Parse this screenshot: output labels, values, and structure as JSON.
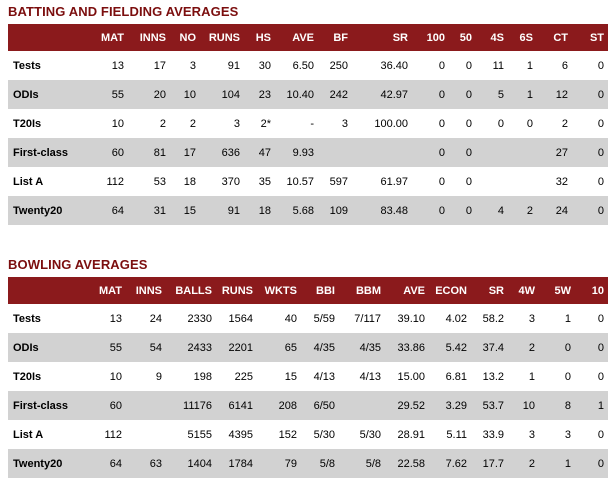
{
  "batting": {
    "title": "BATTING AND FIELDING AVERAGES",
    "columns": [
      "",
      "MAT",
      "INNS",
      "NO",
      "RUNS",
      "HS",
      "AVE",
      "BF",
      "SR",
      "100",
      "50",
      "4S",
      "6S",
      "CT",
      "ST"
    ],
    "rows": [
      [
        "Tests",
        "13",
        "17",
        "3",
        "91",
        "30",
        "6.50",
        "250",
        "36.40",
        "0",
        "0",
        "11",
        "1",
        "6",
        "0"
      ],
      [
        "ODIs",
        "55",
        "20",
        "10",
        "104",
        "23",
        "10.40",
        "242",
        "42.97",
        "0",
        "0",
        "5",
        "1",
        "12",
        "0"
      ],
      [
        "T20Is",
        "10",
        "2",
        "2",
        "3",
        "2*",
        "-",
        "3",
        "100.00",
        "0",
        "0",
        "0",
        "0",
        "2",
        "0"
      ],
      [
        "First-class",
        "60",
        "81",
        "17",
        "636",
        "47",
        "9.93",
        "",
        "",
        "0",
        "0",
        "",
        "",
        "27",
        "0"
      ],
      [
        "List A",
        "112",
        "53",
        "18",
        "370",
        "35",
        "10.57",
        "597",
        "61.97",
        "0",
        "0",
        "",
        "",
        "32",
        "0"
      ],
      [
        "Twenty20",
        "64",
        "31",
        "15",
        "91",
        "18",
        "5.68",
        "109",
        "83.48",
        "0",
        "0",
        "4",
        "2",
        "24",
        "0"
      ]
    ]
  },
  "bowling": {
    "title": "BOWLING AVERAGES",
    "columns": [
      "",
      "MAT",
      "INNS",
      "BALLS",
      "RUNS",
      "WKTS",
      "BBI",
      "BBM",
      "AVE",
      "ECON",
      "SR",
      "4W",
      "5W",
      "10"
    ],
    "rows": [
      [
        "Tests",
        "13",
        "24",
        "2330",
        "1564",
        "40",
        "5/59",
        "7/117",
        "39.10",
        "4.02",
        "58.2",
        "3",
        "1",
        "0"
      ],
      [
        "ODIs",
        "55",
        "54",
        "2433",
        "2201",
        "65",
        "4/35",
        "4/35",
        "33.86",
        "5.42",
        "37.4",
        "2",
        "0",
        "0"
      ],
      [
        "T20Is",
        "10",
        "9",
        "198",
        "225",
        "15",
        "4/13",
        "4/13",
        "15.00",
        "6.81",
        "13.2",
        "1",
        "0",
        "0"
      ],
      [
        "First-class",
        "60",
        "",
        "11176",
        "6141",
        "208",
        "6/50",
        "",
        "29.52",
        "3.29",
        "53.7",
        "10",
        "8",
        "1"
      ],
      [
        "List A",
        "112",
        "",
        "5155",
        "4395",
        "152",
        "5/30",
        "5/30",
        "28.91",
        "5.11",
        "33.9",
        "3",
        "3",
        "0"
      ],
      [
        "Twenty20",
        "64",
        "63",
        "1404",
        "1784",
        "79",
        "5/8",
        "5/8",
        "22.58",
        "7.62",
        "17.7",
        "2",
        "1",
        "0"
      ]
    ]
  }
}
